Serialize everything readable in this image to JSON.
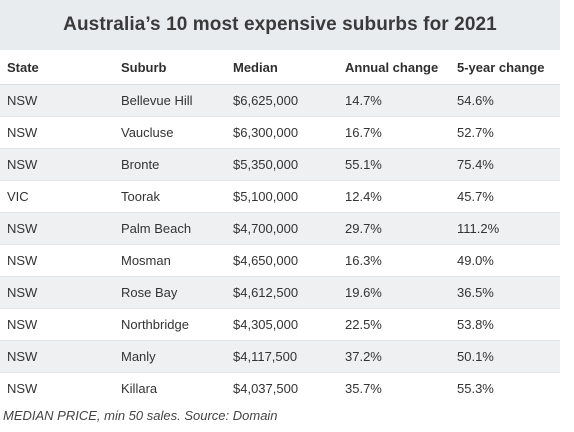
{
  "title": "Australia’s 10 most expensive suburbs for 2021",
  "columns": [
    "State",
    "Suburb",
    "Median",
    "Annual change",
    "5-year change"
  ],
  "rows": [
    [
      "NSW",
      "Bellevue Hill",
      "$6,625,000",
      "14.7%",
      "54.6%"
    ],
    [
      "NSW",
      "Vaucluse",
      "$6,300,000",
      "16.7%",
      "52.7%"
    ],
    [
      "NSW",
      "Bronte",
      "$5,350,000",
      "55.1%",
      "75.4%"
    ],
    [
      "VIC",
      "Toorak",
      "$5,100,000",
      "12.4%",
      "45.7%"
    ],
    [
      "NSW",
      "Palm Beach",
      "$4,700,000",
      "29.7%",
      "111.2%"
    ],
    [
      "NSW",
      "Mosman",
      "$4,650,000",
      "16.3%",
      "49.0%"
    ],
    [
      "NSW",
      "Rose Bay",
      "$4,612,500",
      "19.6%",
      "36.5%"
    ],
    [
      "NSW",
      "Northbridge",
      "$4,305,000",
      "22.5%",
      "53.8%"
    ],
    [
      "NSW",
      "Manly",
      "$4,117,500",
      "37.2%",
      "50.1%"
    ],
    [
      "NSW",
      "Killara",
      "$4,037,500",
      "35.7%",
      "55.3%"
    ]
  ],
  "footnote": "MEDIAN PRICE, min 50 sales. Source: Domain",
  "colors": {
    "title_background": "#e9ecef",
    "stripe": "#eef0f2",
    "text": "#333333"
  }
}
